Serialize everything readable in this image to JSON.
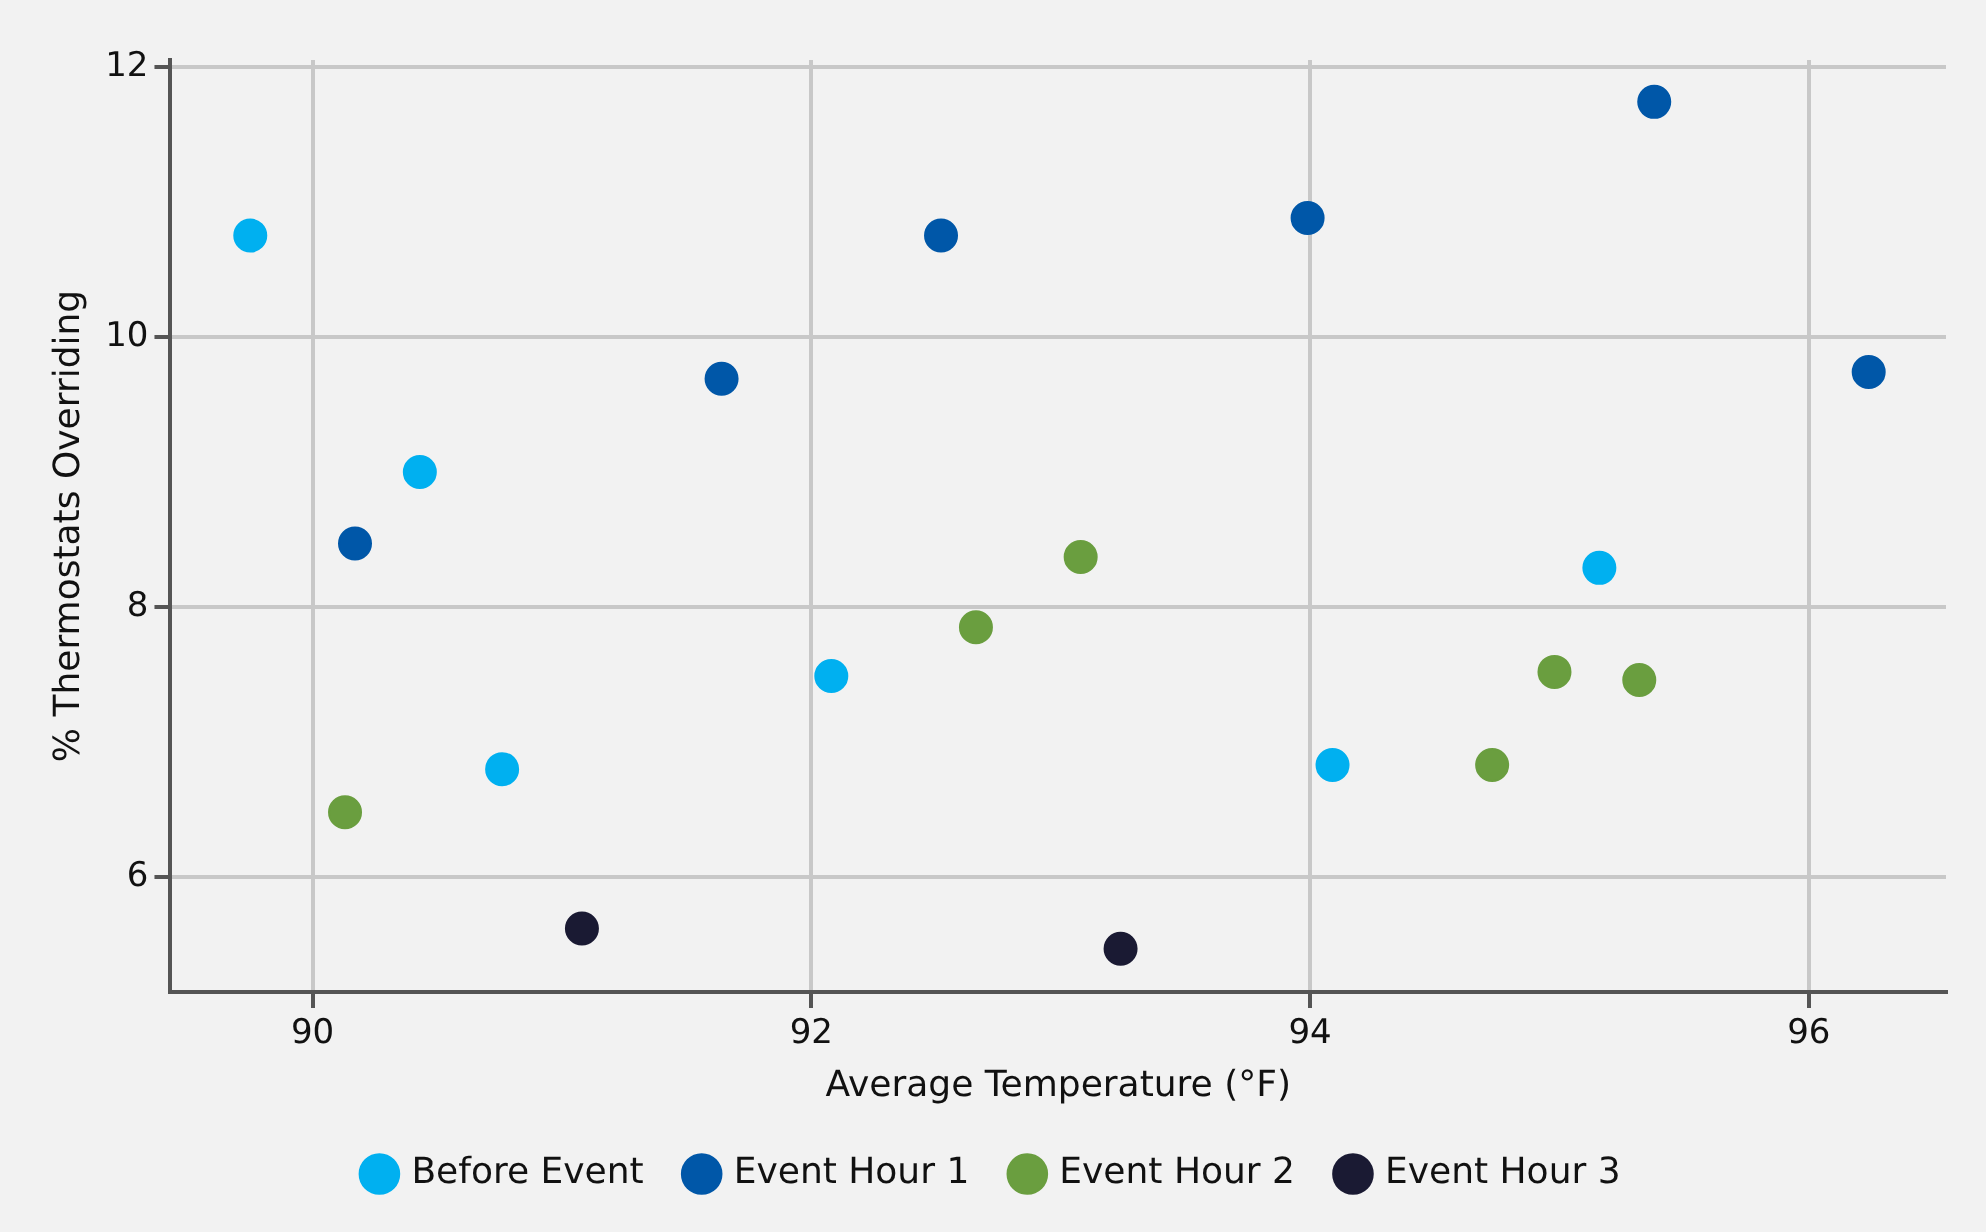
{
  "chart_data": {
    "type": "scatter",
    "xlabel": "Average Temperature (°F)",
    "ylabel": "% Thermostats Overriding",
    "xlim": [
      89.43,
      96.55
    ],
    "xticks": [
      90,
      92,
      94,
      96
    ],
    "ylim": [
      5.15,
      12.05
    ],
    "yticks": [
      6,
      8,
      10,
      12
    ],
    "grid": true,
    "legend": "bottom",
    "marker": "circle",
    "series": [
      {
        "name": "Before Event",
        "color": "#00b0f0",
        "x": [
          89.75,
          90.43,
          90.76,
          92.08,
          94.09,
          95.16
        ],
        "values": [
          10.75,
          9.0,
          6.8,
          7.49,
          6.83,
          8.29
        ]
      },
      {
        "name": "Event Hour 1",
        "color": "#0057a8",
        "x": [
          90.17,
          91.64,
          92.52,
          93.99,
          95.38,
          96.24
        ],
        "values": [
          8.47,
          9.69,
          10.75,
          10.88,
          11.74,
          9.74
        ]
      },
      {
        "name": "Event Hour 2",
        "color": "#6a9e3f",
        "x": [
          90.13,
          92.66,
          93.08,
          94.73,
          94.98,
          95.32
        ],
        "values": [
          6.48,
          7.85,
          8.37,
          6.83,
          7.52,
          7.46
        ]
      },
      {
        "name": "Event Hour 3",
        "color": "#1a1a33",
        "x": [
          91.08,
          93.24
        ],
        "values": [
          5.62,
          5.47
        ]
      }
    ]
  }
}
